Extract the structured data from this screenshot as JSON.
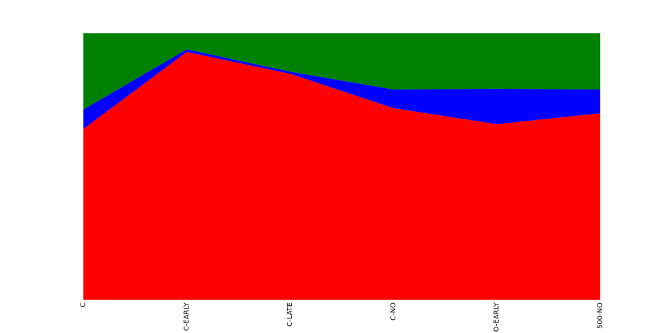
{
  "chart_data": {
    "type": "area",
    "stacked": true,
    "normalized": true,
    "categories": [
      "C",
      "C-EARLY",
      "C-LATE",
      "C-NO",
      "O-EARLY",
      "500-NO"
    ],
    "tick_labels": [
      "C",
      "C-EARLY",
      "C-LATE",
      "C-NO",
      "O-EARLY",
      "500-NO"
    ],
    "ylim": [
      0,
      1
    ],
    "grid": false,
    "legend": "none",
    "series": [
      {
        "color": "#ff0000",
        "values": [
          0.641,
          0.93,
          0.848,
          0.719,
          0.659,
          0.7
        ]
      },
      {
        "color": "#0000ff",
        "values": [
          0.073,
          0.01,
          0.008,
          0.07,
          0.133,
          0.089
        ]
      },
      {
        "color": "#008000",
        "values": [
          0.286,
          0.06,
          0.144,
          0.211,
          0.208,
          0.211
        ]
      }
    ]
  }
}
